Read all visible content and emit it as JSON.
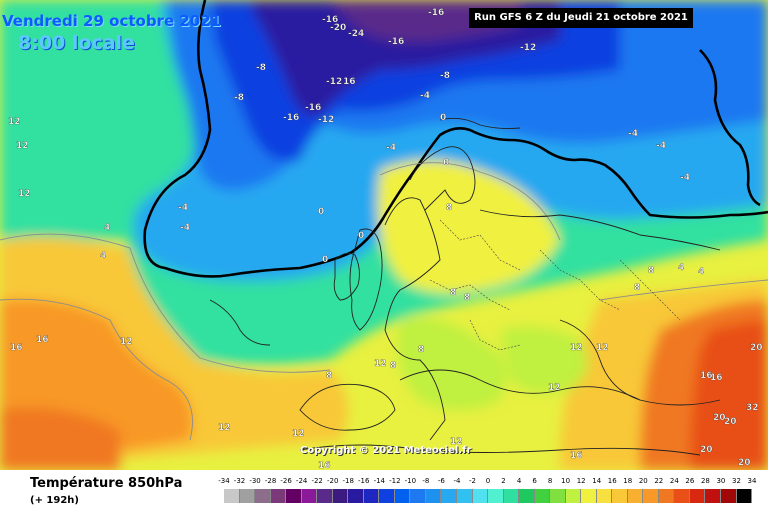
{
  "header": {
    "valid_time": "Vendredi 29 octobre 2021",
    "local_time": "8:00 locale",
    "run": "Run GFS 6 Z du Jeudi 21 octobre 2021"
  },
  "copyright": "Copyright © 2021 Meteociel.fr",
  "footer": {
    "variable": "Température 850hPa",
    "lead_time": "(+ 192h)"
  },
  "legend": {
    "ticks": [
      "-34",
      "-32",
      "-30",
      "-28",
      "-26",
      "-24",
      "-22",
      "-20",
      "-18",
      "-16",
      "-14",
      "-12",
      "-10",
      "-8",
      "-6",
      "-4",
      "-2",
      "0",
      "2",
      "4",
      "6",
      "8",
      "10",
      "12",
      "14",
      "16",
      "18",
      "20",
      "22",
      "24",
      "26",
      "28",
      "30",
      "32",
      "34"
    ],
    "colors": [
      "#c8c8c8",
      "#a0a0a0",
      "#8c6e8c",
      "#7a3a7a",
      "#640064",
      "#8a1a9a",
      "#5a2a8a",
      "#3c1a80",
      "#2a1aa0",
      "#1e28c0",
      "#1040e0",
      "#0060f0",
      "#1e78f0",
      "#1e90f0",
      "#28a8f0",
      "#32c0f0",
      "#50e0f0",
      "#50f0d0",
      "#30e0a0",
      "#20c860",
      "#40d040",
      "#80e040",
      "#c0f040",
      "#f0f040",
      "#f8e040",
      "#f8c838",
      "#f8b030",
      "#f89828",
      "#f07820",
      "#e85018",
      "#d82810",
      "#c01010",
      "#a00808",
      "#000000"
    ]
  },
  "map_labels": [
    {
      "text": "-16"
    },
    {
      "text": "-16"
    },
    {
      "text": "-20"
    },
    {
      "text": "-24"
    },
    {
      "text": "-16"
    },
    {
      "text": "-12"
    },
    {
      "text": "-8"
    },
    {
      "text": "-8"
    },
    {
      "text": "-12"
    },
    {
      "text": "16"
    },
    {
      "text": "-16"
    },
    {
      "text": "-16"
    },
    {
      "text": "-12"
    },
    {
      "text": "-4"
    },
    {
      "text": "-8"
    },
    {
      "text": "-4"
    },
    {
      "text": "-4"
    },
    {
      "text": "-4"
    },
    {
      "text": "-4"
    },
    {
      "text": "0"
    },
    {
      "text": "0"
    },
    {
      "text": "-4"
    },
    {
      "text": "0"
    },
    {
      "text": "0"
    },
    {
      "text": "8"
    },
    {
      "text": "8"
    },
    {
      "text": "12"
    },
    {
      "text": "12"
    },
    {
      "text": "8"
    },
    {
      "text": "8"
    },
    {
      "text": "4"
    },
    {
      "text": "12"
    },
    {
      "text": "16"
    },
    {
      "text": "16"
    },
    {
      "text": "12"
    },
    {
      "text": "12"
    },
    {
      "text": "16"
    },
    {
      "text": "12"
    },
    {
      "text": "12"
    },
    {
      "text": "12"
    },
    {
      "text": "8"
    },
    {
      "text": "8"
    },
    {
      "text": "4"
    },
    {
      "text": "4"
    },
    {
      "text": "8"
    },
    {
      "text": "8"
    },
    {
      "text": "12"
    },
    {
      "text": "12"
    },
    {
      "text": "12"
    },
    {
      "text": "16"
    },
    {
      "text": "16"
    },
    {
      "text": "16"
    },
    {
      "text": "20"
    },
    {
      "text": "20"
    },
    {
      "text": "20"
    },
    {
      "text": "20"
    },
    {
      "text": "20"
    },
    {
      "text": "32"
    },
    {
      "text": "4"
    },
    {
      "text": "-4"
    },
    {
      "text": "0"
    }
  ]
}
